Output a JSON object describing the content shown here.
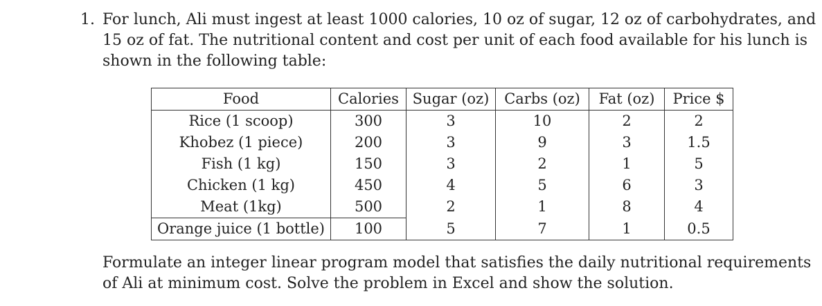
{
  "problem": {
    "number": "1.",
    "intro_lines": [
      "For lunch, Ali must ingest at least 1000 calories, 10 oz of sugar, 12 oz of carbohydrates, and",
      "15 oz of fat. The nutritional content and cost per unit of each food available for his lunch is",
      "shown in the following table:"
    ],
    "outro_lines": [
      "Formulate an integer linear program model that satisfies the daily nutritional requirements",
      "of Ali at minimum cost. Solve the problem in Excel and show the solution."
    ]
  },
  "table": {
    "headers": [
      "Food",
      "Calories",
      "Sugar (oz)",
      "Carbs (oz)",
      "Fat (oz)",
      "Price $"
    ],
    "rows": [
      [
        "Rice (1 scoop)",
        "300",
        "3",
        "10",
        "2",
        "2"
      ],
      [
        "Khobez (1 piece)",
        "200",
        "3",
        "9",
        "3",
        "1.5"
      ],
      [
        "Fish (1 kg)",
        "150",
        "3",
        "2",
        "1",
        "5"
      ],
      [
        "Chicken (1 kg)",
        "450",
        "4",
        "5",
        "6",
        "3"
      ],
      [
        "Meat (1kg)",
        "500",
        "2",
        "1",
        "8",
        "4"
      ],
      [
        "Orange juice (1 bottle)",
        "100",
        "5",
        "7",
        "1",
        "0.5"
      ]
    ]
  }
}
